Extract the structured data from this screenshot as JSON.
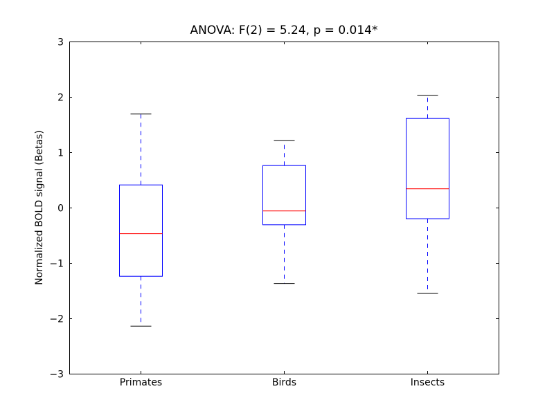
{
  "chart_data": {
    "type": "box",
    "title": "ANOVA: F(2) = 5.24, p = 0.014*",
    "xlabel": "",
    "ylabel": "Normalized BOLD signal (Betas)",
    "ylim": [
      -3,
      3
    ],
    "yticks": [
      -3,
      -2,
      -1,
      0,
      1,
      2,
      3
    ],
    "ytick_labels": [
      "−3",
      "−2",
      "−1",
      "0",
      "1",
      "2",
      "3"
    ],
    "categories": [
      "Primates",
      "Birds",
      "Insects"
    ],
    "boxes": [
      {
        "name": "Primates",
        "whisker_low": -2.14,
        "q1": -1.24,
        "median": -0.47,
        "q3": 0.41,
        "whisker_high": 1.69
      },
      {
        "name": "Birds",
        "whisker_low": -1.37,
        "q1": -0.31,
        "median": -0.06,
        "q3": 0.76,
        "whisker_high": 1.21
      },
      {
        "name": "Insects",
        "whisker_low": -1.55,
        "q1": -0.2,
        "median": 0.34,
        "q3": 1.61,
        "whisker_high": 2.03
      }
    ],
    "grid": false,
    "colors": {
      "box": "#0000ff",
      "median": "#ff0000",
      "cap": "#000000"
    }
  }
}
